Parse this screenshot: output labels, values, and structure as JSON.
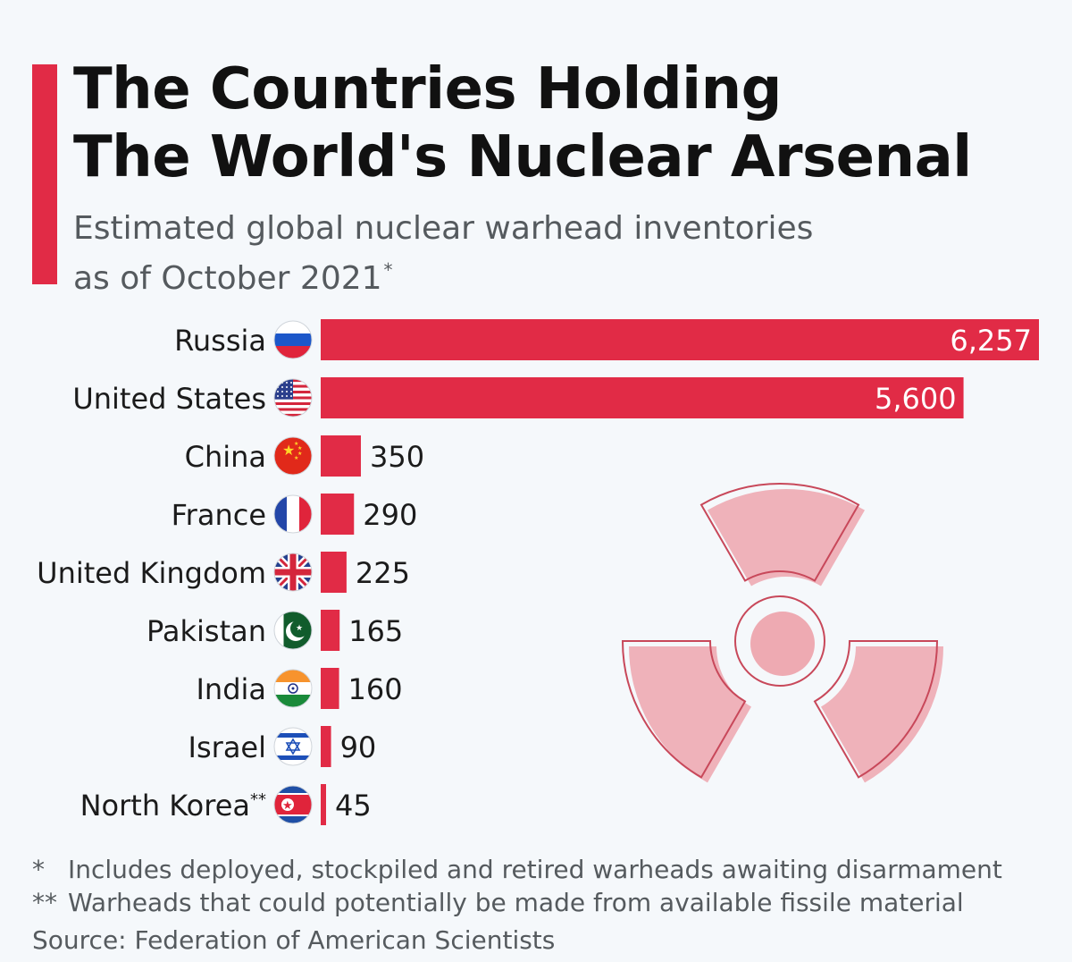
{
  "header": {
    "title_line1": "The Countries Holding",
    "title_line2": "The World's Nuclear Arsenal",
    "subtitle_line1": "Estimated global nuclear warhead inventories",
    "subtitle_line2": "as of October 2021",
    "subtitle_mark": "*"
  },
  "colors": {
    "accent": "#e12b46",
    "bar": "#e12b46",
    "background": "#f5f8fb",
    "decoration": "#eeaab2"
  },
  "chart_data": {
    "type": "bar",
    "orientation": "horizontal",
    "categories": [
      "Russia",
      "United States",
      "China",
      "France",
      "United Kingdom",
      "Pakistan",
      "India",
      "Israel",
      "North Korea"
    ],
    "category_marks": [
      "",
      "",
      "",
      "",
      "",
      "",
      "",
      "",
      "**"
    ],
    "flag_icons": [
      "russia-flag-icon",
      "usa-flag-icon",
      "china-flag-icon",
      "france-flag-icon",
      "uk-flag-icon",
      "pakistan-flag-icon",
      "india-flag-icon",
      "israel-flag-icon",
      "north-korea-flag-icon"
    ],
    "values": [
      6257,
      5600,
      350,
      290,
      225,
      165,
      160,
      90,
      45
    ],
    "value_labels": [
      "6,257",
      "5,600",
      "350",
      "290",
      "225",
      "165",
      "160",
      "90",
      "45"
    ],
    "xlim": [
      0,
      6257
    ],
    "grid": false,
    "legend": "none",
    "decoration_icon": "radiation-icon"
  },
  "notes": {
    "note1_mark": "*",
    "note1_text": "Includes deployed, stockpiled and retired warheads awaiting disarmament",
    "note2_mark": "**",
    "note2_text": "Warheads that could potentially be made from available fissile material"
  },
  "source": "Source: Federation of American Scientists"
}
